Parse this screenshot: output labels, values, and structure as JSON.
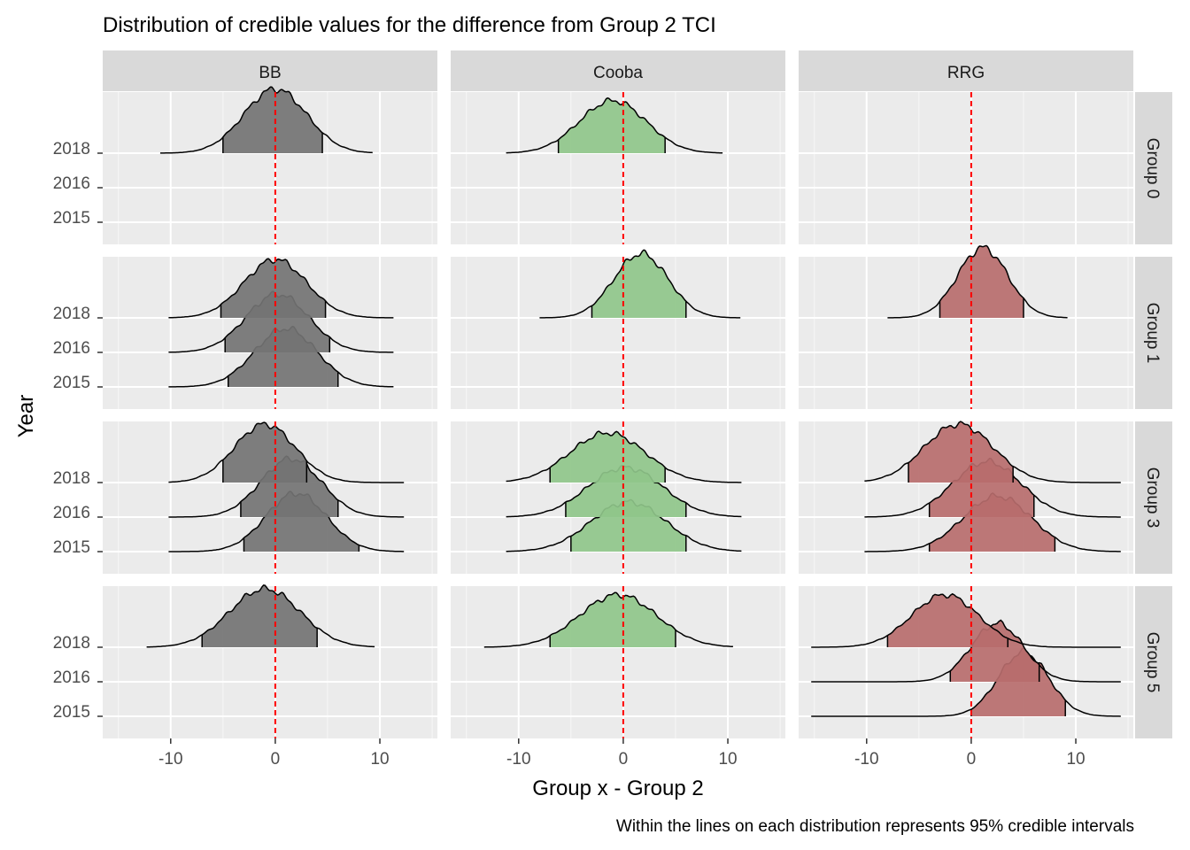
{
  "chart_data": {
    "type": "ridgeline",
    "title": "Distribution of credible values for the difference from Group 2 TCI",
    "xlabel": "Group x - Group 2",
    "ylabel": "Year",
    "caption": "Within the lines on each distribution represents 95% credible intervals",
    "xlim": [
      -16.5,
      15.5
    ],
    "x_ticks": [
      -10,
      0,
      10
    ],
    "x_tick_labels": [
      "-10",
      "0",
      "10"
    ],
    "y_ticks": [
      "2018",
      "2016",
      "2015"
    ],
    "reference_line": 0,
    "columns": [
      "BB",
      "Cooba",
      "RRG"
    ],
    "rows": [
      "Group 0",
      "Group 1",
      "Group 3",
      "Group 5"
    ],
    "colors": {
      "BB": "#737373",
      "Cooba": "#8fc58a",
      "RRG": "#b76c6c",
      "reference": "#ff0000",
      "panel": "#ebebeb",
      "strip": "#d9d9d9"
    },
    "distributions": [
      {
        "row": "Group 0",
        "col": "BB",
        "year": "2018",
        "mean": 0,
        "sd": 3.0,
        "ci": [
          -5,
          4.5
        ],
        "range": [
          -11,
          9.3
        ],
        "peak": 1.1
      },
      {
        "row": "Group 0",
        "col": "Cooba",
        "year": "2018",
        "mean": -1,
        "sd": 3.2,
        "ci": [
          -6.2,
          4
        ],
        "range": [
          -11.2,
          9.5
        ],
        "peak": 0.9
      },
      {
        "row": "Group 1",
        "col": "BB",
        "year": "2018",
        "mean": 0,
        "sd": 3.0,
        "ci": [
          -5.2,
          4.8
        ],
        "range": [
          -10.2,
          11.3
        ],
        "peak": 1.0
      },
      {
        "row": "Group 1",
        "col": "BB",
        "year": "2016",
        "mean": 0.2,
        "sd": 3.0,
        "ci": [
          -4.8,
          5.2
        ],
        "range": [
          -10.2,
          11.3
        ],
        "peak": 1.0
      },
      {
        "row": "Group 1",
        "col": "BB",
        "year": "2015",
        "mean": 1,
        "sd": 3.0,
        "ci": [
          -4.5,
          6
        ],
        "range": [
          -10.2,
          11.3
        ],
        "peak": 1.0
      },
      {
        "row": "Group 1",
        "col": "Cooba",
        "year": "2018",
        "mean": 1.7,
        "sd": 2.6,
        "ci": [
          -3,
          6
        ],
        "range": [
          -8,
          11.2
        ],
        "peak": 1.1
      },
      {
        "row": "Group 1",
        "col": "RRG",
        "year": "2018",
        "mean": 1.1,
        "sd": 2.4,
        "ci": [
          -3,
          5
        ],
        "range": [
          -8,
          9.2
        ],
        "peak": 1.2
      },
      {
        "row": "Group 3",
        "col": "BB",
        "year": "2018",
        "mean": -1,
        "sd": 2.9,
        "ci": [
          -5,
          3
        ],
        "range": [
          -10.2,
          12.3
        ],
        "peak": 1.0
      },
      {
        "row": "Group 3",
        "col": "BB",
        "year": "2016",
        "mean": 1.5,
        "sd": 2.9,
        "ci": [
          -3.3,
          6
        ],
        "range": [
          -10.2,
          12.3
        ],
        "peak": 1.0
      },
      {
        "row": "Group 3",
        "col": "BB",
        "year": "2015",
        "mean": 2,
        "sd": 2.9,
        "ci": [
          -3,
          8
        ],
        "range": [
          -10.2,
          12.3
        ],
        "peak": 1.0
      },
      {
        "row": "Group 3",
        "col": "Cooba",
        "year": "2018",
        "mean": -1.5,
        "sd": 3.6,
        "ci": [
          -7,
          4
        ],
        "range": [
          -11.2,
          11.3
        ],
        "peak": 0.85
      },
      {
        "row": "Group 3",
        "col": "Cooba",
        "year": "2016",
        "mean": 0.2,
        "sd": 3.6,
        "ci": [
          -5.5,
          6
        ],
        "range": [
          -11.2,
          11.3
        ],
        "peak": 0.85
      },
      {
        "row": "Group 3",
        "col": "Cooba",
        "year": "2015",
        "mean": 0.5,
        "sd": 3.6,
        "ci": [
          -5,
          6
        ],
        "range": [
          -11.2,
          11.3
        ],
        "peak": 0.85
      },
      {
        "row": "Group 3",
        "col": "RRG",
        "year": "2018",
        "mean": -1.2,
        "sd": 3.3,
        "ci": [
          -6,
          4
        ],
        "range": [
          -10.2,
          14.3
        ],
        "peak": 1.0
      },
      {
        "row": "Group 3",
        "col": "RRG",
        "year": "2016",
        "mean": 1.5,
        "sd": 3.3,
        "ci": [
          -4,
          6
        ],
        "range": [
          -10.2,
          14.3
        ],
        "peak": 0.95
      },
      {
        "row": "Group 3",
        "col": "RRG",
        "year": "2015",
        "mean": 2.5,
        "sd": 3.3,
        "ci": [
          -4,
          8
        ],
        "range": [
          -10.2,
          14.3
        ],
        "peak": 0.95
      },
      {
        "row": "Group 5",
        "col": "BB",
        "year": "2018",
        "mean": -1,
        "sd": 3.4,
        "ci": [
          -7,
          4
        ],
        "range": [
          -12.3,
          9.5
        ],
        "peak": 1.0
      },
      {
        "row": "Group 5",
        "col": "Cooba",
        "year": "2018",
        "mean": -0.5,
        "sd": 3.7,
        "ci": [
          -7,
          5
        ],
        "range": [
          -13.3,
          10.5
        ],
        "peak": 0.9
      },
      {
        "row": "Group 5",
        "col": "RRG",
        "year": "2018",
        "mean": -2.5,
        "sd": 3.2,
        "ci": [
          -8,
          3.5
        ],
        "range": [
          -15.3,
          14.3
        ],
        "peak": 0.9
      },
      {
        "row": "Group 5",
        "col": "RRG",
        "year": "2016",
        "mean": 2.5,
        "sd": 2.5,
        "ci": [
          -2,
          6.5
        ],
        "range": [
          -15.3,
          14.3
        ],
        "peak": 1.0
      },
      {
        "row": "Group 5",
        "col": "RRG",
        "year": "2015",
        "mean": 5,
        "sd": 2.4,
        "ci": [
          0,
          9
        ],
        "range": [
          -15.3,
          14.3
        ],
        "peak": 1.1
      }
    ]
  }
}
